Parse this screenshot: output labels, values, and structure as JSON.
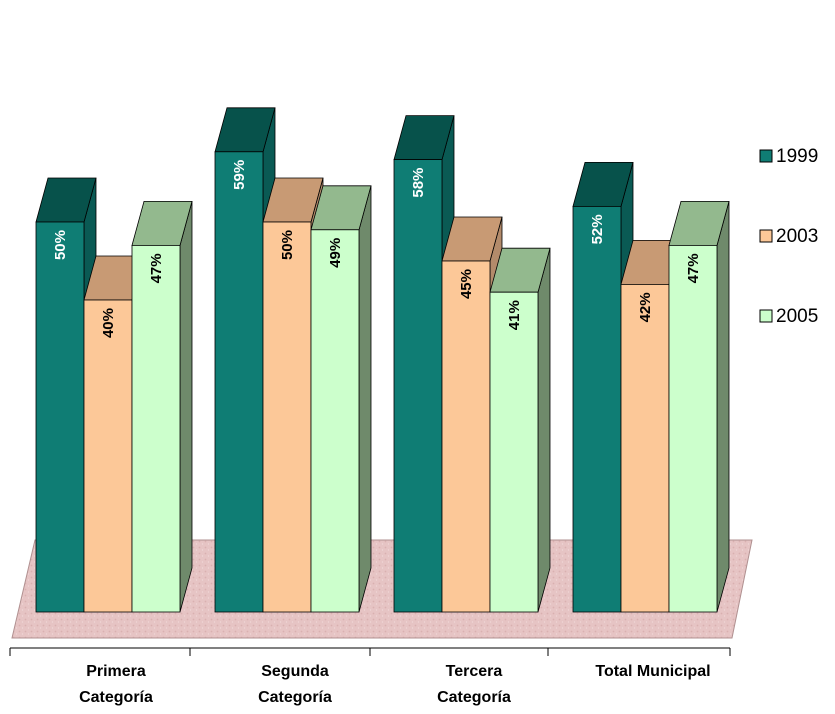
{
  "chart_data": {
    "type": "bar",
    "categories": [
      [
        "Primera",
        "Categoría"
      ],
      [
        "Segunda",
        "Categoría"
      ],
      [
        "Tercera",
        "Categoría"
      ],
      [
        "Total Municipal"
      ]
    ],
    "series": [
      {
        "name": "1999",
        "values": [
          50,
          59,
          58,
          52
        ],
        "labels": [
          "50%",
          "59%",
          "58%",
          "52%"
        ],
        "front": "#0f7d74",
        "top": "#07524b",
        "side": "#0a5a54",
        "label_color": "#ffffff"
      },
      {
        "name": "2003",
        "values": [
          40,
          50,
          45,
          42
        ],
        "labels": [
          "40%",
          "50%",
          "45%",
          "42%"
        ],
        "front": "#fcc898",
        "top": "#c89a74",
        "side": "#b38b6b",
        "label_color": "#000000"
      },
      {
        "name": "2005",
        "values": [
          47,
          49,
          41,
          47
        ],
        "labels": [
          "47%",
          "49%",
          "41%",
          "47%"
        ],
        "front": "#ccffcc",
        "top": "#93b98e",
        "side": "#6f8a6b",
        "label_color": "#000000"
      }
    ],
    "floor_color": "#e8c8c8",
    "legend_position": "right"
  }
}
